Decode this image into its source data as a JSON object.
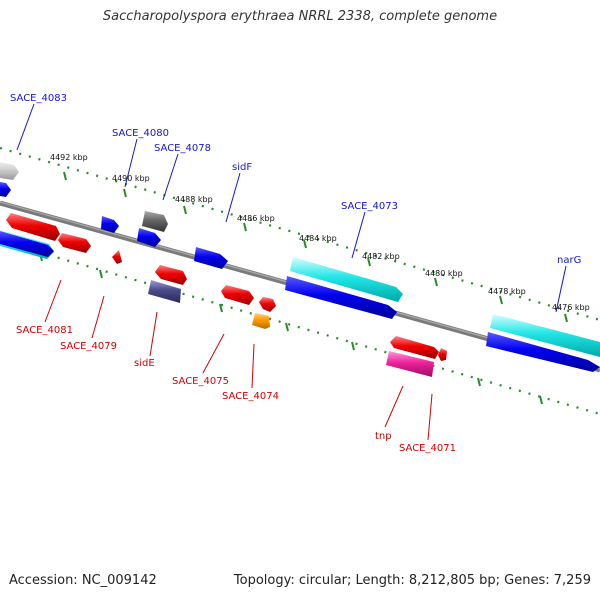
{
  "title": "Saccharopolyspora erythraea NRRL 2338, complete genome",
  "footer": {
    "accession": "Accession: NC_009142",
    "stats": "Topology: circular; Length: 8,212,805 bp; Genes: 7,259"
  },
  "colors": {
    "upper_label": "#1515c8",
    "lower_label": "#d40000",
    "backbone": "#808080",
    "tick_marks": "#2a8a2a"
  },
  "scale_ticks": [
    "4492 kbp",
    "4490 kbp",
    "4488 kbp",
    "4486 kbp",
    "4484 kbp",
    "4482 kbp",
    "4480 kbp",
    "4478 kbp",
    "4476 kbp"
  ],
  "upper_genes": [
    "SACE_4083",
    "SACE_4080",
    "SACE_4078",
    "sidF",
    "SACE_4073",
    "narG"
  ],
  "lower_genes": [
    "SACE_4081",
    "SACE_4079",
    "sidE",
    "SACE_4075",
    "SACE_4074",
    "tnp",
    "SACE_4071"
  ]
}
